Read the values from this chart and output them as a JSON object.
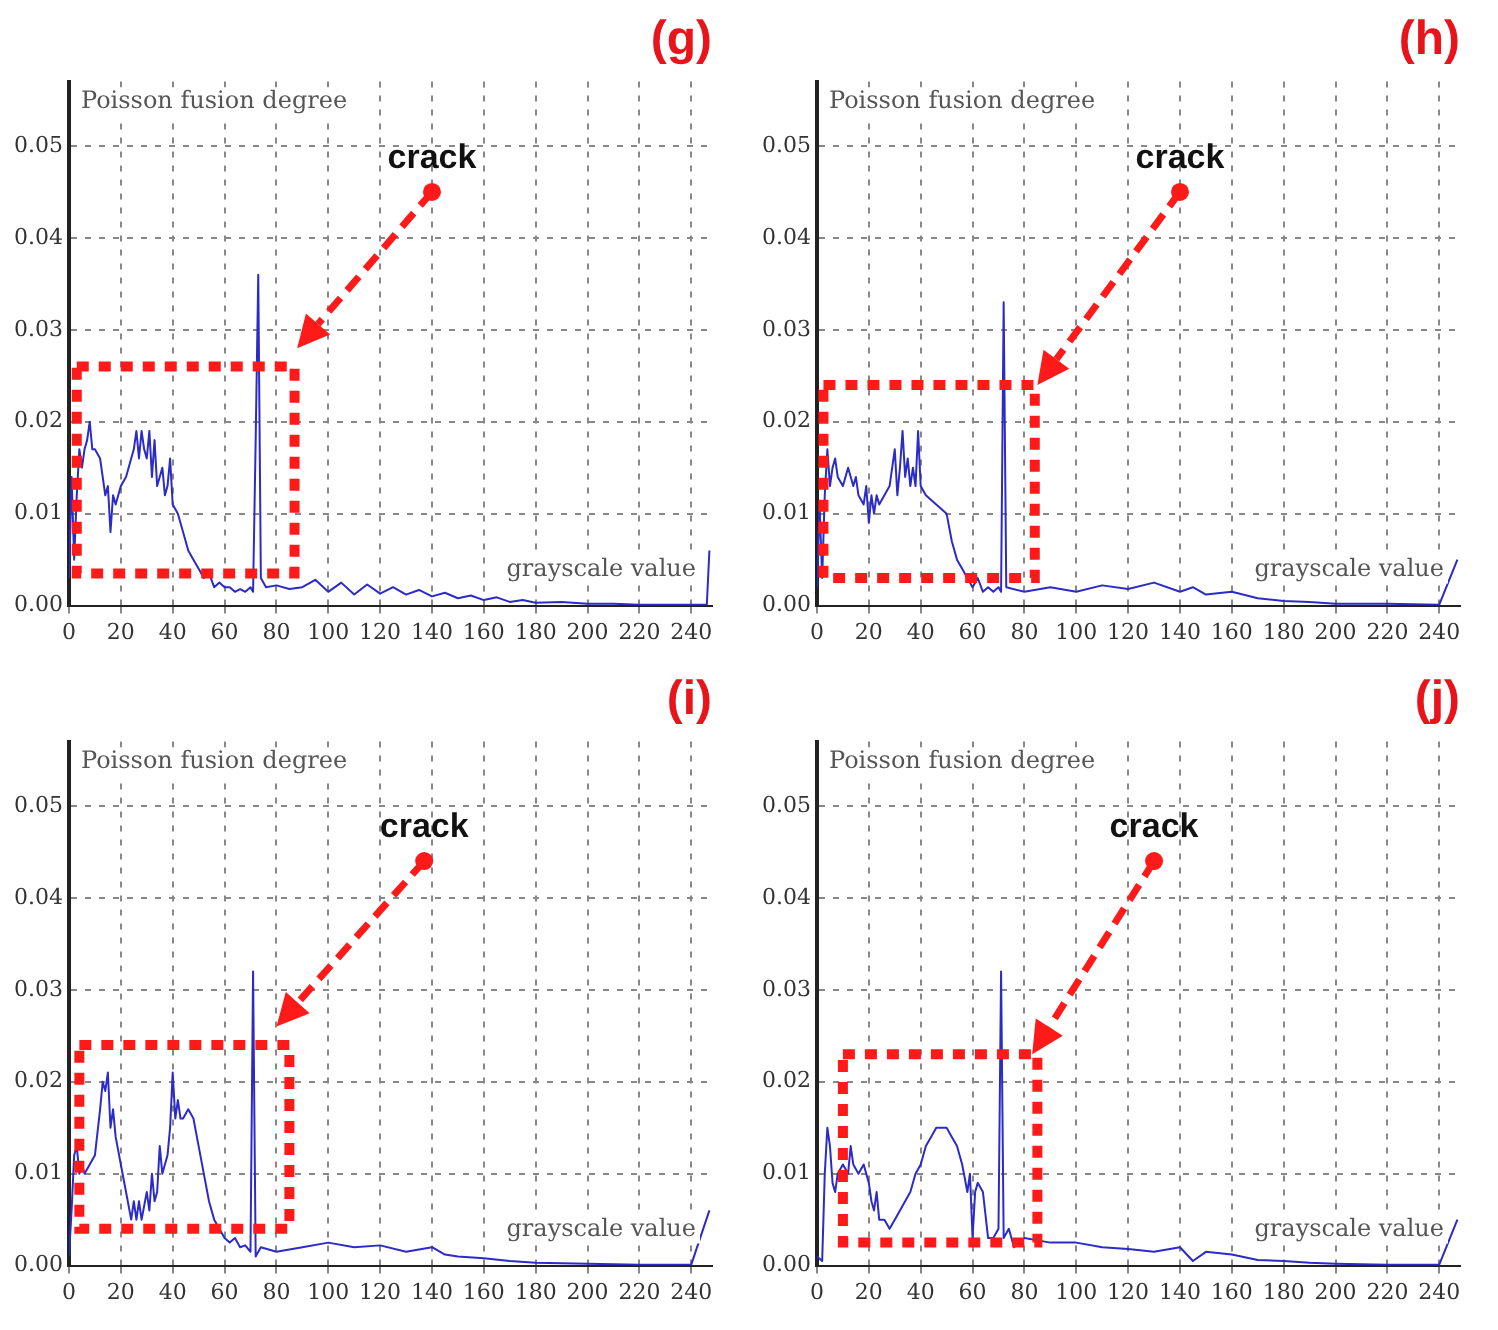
{
  "chart_data": [
    {
      "type": "line",
      "title": "(g)",
      "ylabel": "Poisson fusion degree",
      "xlabel": "grayscale value",
      "annotations": [
        "crack"
      ],
      "color": "#2b2bc8",
      "grid": true,
      "xlim": [
        0,
        248
      ],
      "ylim": [
        0,
        0.057
      ],
      "xticks": [
        0,
        20,
        40,
        60,
        80,
        100,
        120,
        140,
        160,
        180,
        200,
        220,
        240
      ],
      "yticks": [
        {
          "value": 0,
          "label": "0.00"
        },
        {
          "value": 0.01,
          "label": "0.01"
        },
        {
          "value": 0.02,
          "label": "0.02"
        },
        {
          "value": 0.03,
          "label": "0.03"
        },
        {
          "value": 0.04,
          "label": "0.04"
        },
        {
          "value": 0.05,
          "label": "0.05"
        }
      ],
      "x": [
        0,
        1,
        2,
        3,
        4,
        5,
        6,
        7,
        8,
        9,
        10,
        12,
        14,
        15,
        16,
        17,
        18,
        20,
        22,
        24,
        25,
        26,
        27,
        28,
        29,
        30,
        31,
        32,
        33,
        34,
        36,
        37,
        38,
        39,
        40,
        42,
        44,
        46,
        48,
        50,
        52,
        54,
        56,
        58,
        60,
        62,
        64,
        66,
        68,
        70,
        71,
        72,
        73,
        74,
        76,
        80,
        85,
        90,
        95,
        100,
        105,
        110,
        115,
        120,
        125,
        130,
        135,
        140,
        145,
        150,
        155,
        160,
        165,
        170,
        175,
        180,
        190,
        200,
        210,
        220,
        230,
        240,
        246,
        247
      ],
      "values": [
        0.003,
        0.014,
        0.005,
        0.012,
        0.017,
        0.015,
        0.017,
        0.018,
        0.02,
        0.017,
        0.017,
        0.016,
        0.012,
        0.013,
        0.008,
        0.012,
        0.011,
        0.013,
        0.014,
        0.016,
        0.017,
        0.019,
        0.016,
        0.019,
        0.017,
        0.016,
        0.019,
        0.014,
        0.018,
        0.013,
        0.015,
        0.012,
        0.013,
        0.016,
        0.011,
        0.01,
        0.008,
        0.006,
        0.005,
        0.004,
        0.003,
        0.0035,
        0.002,
        0.0025,
        0.002,
        0.002,
        0.0015,
        0.0018,
        0.0015,
        0.002,
        0.0015,
        0.018,
        0.036,
        0.003,
        0.002,
        0.0022,
        0.0018,
        0.002,
        0.0028,
        0.0015,
        0.0025,
        0.0012,
        0.0023,
        0.0013,
        0.002,
        0.0012,
        0.0017,
        0.001,
        0.0014,
        0.0008,
        0.0011,
        0.0006,
        0.0009,
        0.0004,
        0.0006,
        0.0003,
        0.0004,
        0.0002,
        0.0002,
        0.0001,
        0.0001,
        0.0001,
        0.0001,
        0.006
      ]
    },
    {
      "type": "line",
      "title": "(h)",
      "ylabel": "Poisson fusion degree",
      "xlabel": "grayscale value",
      "annotations": [
        "crack"
      ],
      "color": "#2b2bc8",
      "grid": true,
      "xlim": [
        0,
        248
      ],
      "ylim": [
        0,
        0.057
      ],
      "xticks": [
        0,
        20,
        40,
        60,
        80,
        100,
        120,
        140,
        160,
        180,
        200,
        220,
        240
      ],
      "yticks": [
        {
          "value": 0,
          "label": "0.00"
        },
        {
          "value": 0.01,
          "label": "0.01"
        },
        {
          "value": 0.02,
          "label": "0.02"
        },
        {
          "value": 0.03,
          "label": "0.03"
        },
        {
          "value": 0.04,
          "label": "0.04"
        },
        {
          "value": 0.05,
          "label": "0.05"
        }
      ],
      "x": [
        0,
        1,
        2,
        3,
        4,
        5,
        6,
        7,
        8,
        10,
        12,
        14,
        15,
        16,
        18,
        19,
        20,
        21,
        22,
        23,
        24,
        26,
        28,
        30,
        31,
        32,
        33,
        34,
        35,
        36,
        37,
        38,
        39,
        40,
        42,
        46,
        50,
        52,
        54,
        56,
        58,
        60,
        62,
        64,
        66,
        68,
        70,
        71,
        72,
        73,
        80,
        90,
        100,
        110,
        120,
        130,
        140,
        145,
        150,
        160,
        170,
        180,
        190,
        200,
        220,
        240,
        247
      ],
      "values": [
        0.002,
        0.011,
        0.003,
        0.012,
        0.017,
        0.013,
        0.015,
        0.016,
        0.014,
        0.013,
        0.015,
        0.013,
        0.014,
        0.012,
        0.011,
        0.013,
        0.009,
        0.012,
        0.01,
        0.012,
        0.011,
        0.012,
        0.013,
        0.017,
        0.012,
        0.015,
        0.019,
        0.014,
        0.016,
        0.013,
        0.015,
        0.013,
        0.019,
        0.013,
        0.012,
        0.011,
        0.01,
        0.007,
        0.005,
        0.004,
        0.003,
        0.002,
        0.003,
        0.0015,
        0.002,
        0.0015,
        0.002,
        0.0015,
        0.033,
        0.002,
        0.0015,
        0.002,
        0.0015,
        0.0022,
        0.0018,
        0.0025,
        0.0015,
        0.002,
        0.0012,
        0.0015,
        0.0008,
        0.0005,
        0.0004,
        0.0002,
        0.0002,
        0.0001,
        0.005
      ]
    },
    {
      "type": "line",
      "title": "(i)",
      "ylabel": "Poisson fusion degree",
      "xlabel": "grayscale value",
      "annotations": [
        "crack"
      ],
      "color": "#2b2bc8",
      "grid": true,
      "xlim": [
        0,
        248
      ],
      "ylim": [
        0,
        0.057
      ],
      "xticks": [
        0,
        20,
        40,
        60,
        80,
        100,
        120,
        140,
        160,
        180,
        200,
        220,
        240
      ],
      "yticks": [
        {
          "value": 0,
          "label": "0.00"
        },
        {
          "value": 0.01,
          "label": "0.01"
        },
        {
          "value": 0.02,
          "label": "0.02"
        },
        {
          "value": 0.03,
          "label": "0.03"
        },
        {
          "value": 0.04,
          "label": "0.04"
        },
        {
          "value": 0.05,
          "label": "0.05"
        }
      ],
      "x": [
        0,
        1,
        2,
        3,
        4,
        5,
        6,
        8,
        10,
        12,
        13,
        14,
        15,
        16,
        17,
        18,
        20,
        22,
        24,
        25,
        26,
        27,
        28,
        30,
        31,
        32,
        33,
        34,
        35,
        36,
        38,
        39,
        40,
        41,
        42,
        43,
        44,
        46,
        48,
        50,
        52,
        54,
        56,
        58,
        60,
        62,
        64,
        66,
        68,
        70,
        71,
        72,
        74,
        80,
        90,
        100,
        110,
        120,
        130,
        140,
        145,
        150,
        160,
        170,
        180,
        200,
        220,
        240,
        247
      ],
      "values": [
        0.001,
        0.006,
        0.012,
        0.013,
        0.01,
        0.011,
        0.01,
        0.011,
        0.012,
        0.017,
        0.02,
        0.019,
        0.021,
        0.015,
        0.017,
        0.014,
        0.011,
        0.008,
        0.005,
        0.007,
        0.005,
        0.007,
        0.005,
        0.008,
        0.006,
        0.01,
        0.007,
        0.008,
        0.013,
        0.01,
        0.012,
        0.015,
        0.021,
        0.016,
        0.018,
        0.016,
        0.016,
        0.017,
        0.016,
        0.013,
        0.01,
        0.007,
        0.005,
        0.004,
        0.003,
        0.0025,
        0.003,
        0.002,
        0.0022,
        0.0015,
        0.032,
        0.001,
        0.002,
        0.0015,
        0.002,
        0.0025,
        0.002,
        0.0022,
        0.0015,
        0.002,
        0.0012,
        0.001,
        0.0008,
        0.0005,
        0.0003,
        0.0002,
        0.0001,
        0.0001,
        0.006
      ]
    },
    {
      "type": "line",
      "title": "(j)",
      "ylabel": "Poisson fusion degree",
      "xlabel": "grayscale value",
      "annotations": [
        "crack"
      ],
      "color": "#2b2bc8",
      "grid": true,
      "xlim": [
        0,
        248
      ],
      "ylim": [
        0,
        0.057
      ],
      "xticks": [
        0,
        20,
        40,
        60,
        80,
        100,
        120,
        140,
        160,
        180,
        200,
        220,
        240
      ],
      "yticks": [
        {
          "value": 0,
          "label": "0.00"
        },
        {
          "value": 0.01,
          "label": "0.01"
        },
        {
          "value": 0.02,
          "label": "0.02"
        },
        {
          "value": 0.03,
          "label": "0.03"
        },
        {
          "value": 0.04,
          "label": "0.04"
        },
        {
          "value": 0.05,
          "label": "0.05"
        }
      ],
      "x": [
        0,
        2,
        3,
        4,
        5,
        6,
        7,
        8,
        10,
        12,
        13,
        14,
        16,
        18,
        20,
        21,
        22,
        23,
        24,
        26,
        28,
        30,
        32,
        34,
        36,
        38,
        40,
        42,
        44,
        46,
        48,
        50,
        52,
        54,
        56,
        58,
        59,
        60,
        61,
        62,
        64,
        66,
        68,
        70,
        71,
        72,
        74,
        76,
        80,
        90,
        100,
        110,
        120,
        130,
        140,
        145,
        150,
        160,
        170,
        180,
        190,
        200,
        220,
        240,
        247
      ],
      "values": [
        0.001,
        0.0005,
        0.01,
        0.015,
        0.013,
        0.009,
        0.008,
        0.01,
        0.011,
        0.01,
        0.013,
        0.011,
        0.01,
        0.011,
        0.009,
        0.007,
        0.006,
        0.008,
        0.005,
        0.005,
        0.004,
        0.005,
        0.006,
        0.007,
        0.008,
        0.01,
        0.011,
        0.013,
        0.014,
        0.015,
        0.015,
        0.015,
        0.014,
        0.013,
        0.011,
        0.008,
        0.01,
        0.003,
        0.008,
        0.009,
        0.008,
        0.003,
        0.003,
        0.004,
        0.032,
        0.003,
        0.004,
        0.002,
        0.003,
        0.0025,
        0.0025,
        0.002,
        0.0018,
        0.0015,
        0.002,
        0.0005,
        0.0015,
        0.0012,
        0.0006,
        0.0005,
        0.0003,
        0.0002,
        0.0001,
        0.0001,
        0.005
      ]
    }
  ]
}
